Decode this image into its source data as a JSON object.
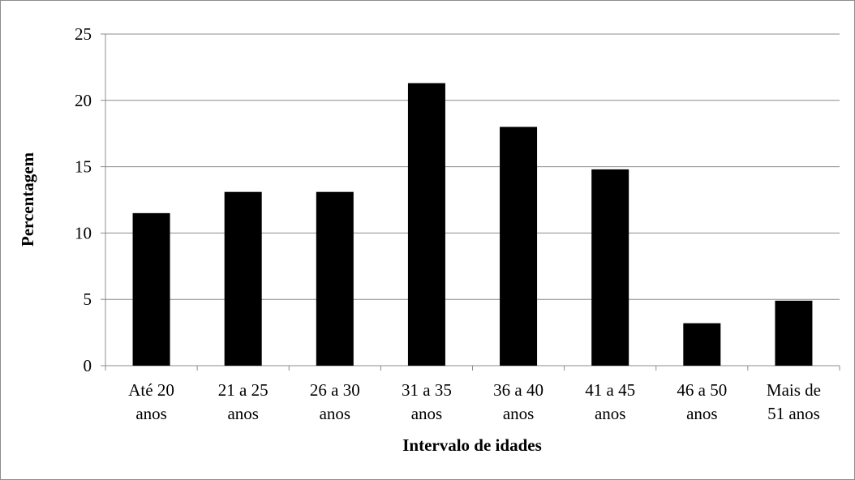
{
  "chart_data": {
    "type": "bar",
    "categories": [
      [
        "Até 20",
        "anos"
      ],
      [
        "21 a 25",
        "anos"
      ],
      [
        "26 a 30",
        "anos"
      ],
      [
        "31 a 35",
        "anos"
      ],
      [
        "36 a 40",
        "anos"
      ],
      [
        "41 a 45",
        "anos"
      ],
      [
        "46 a 50",
        "anos"
      ],
      [
        "Mais de",
        "51 anos"
      ]
    ],
    "values": [
      11.5,
      13.1,
      13.1,
      21.3,
      18.0,
      14.8,
      3.2,
      4.9
    ],
    "xlabel": "Intervalo de idades",
    "ylabel": "Percentagem",
    "ylim": [
      0,
      25
    ],
    "yticks": [
      "0",
      "5",
      "10",
      "15",
      "20",
      "25"
    ],
    "grid": true,
    "legend": "none",
    "bar_color": "#000000",
    "grid_color": "#8c8c8c"
  }
}
